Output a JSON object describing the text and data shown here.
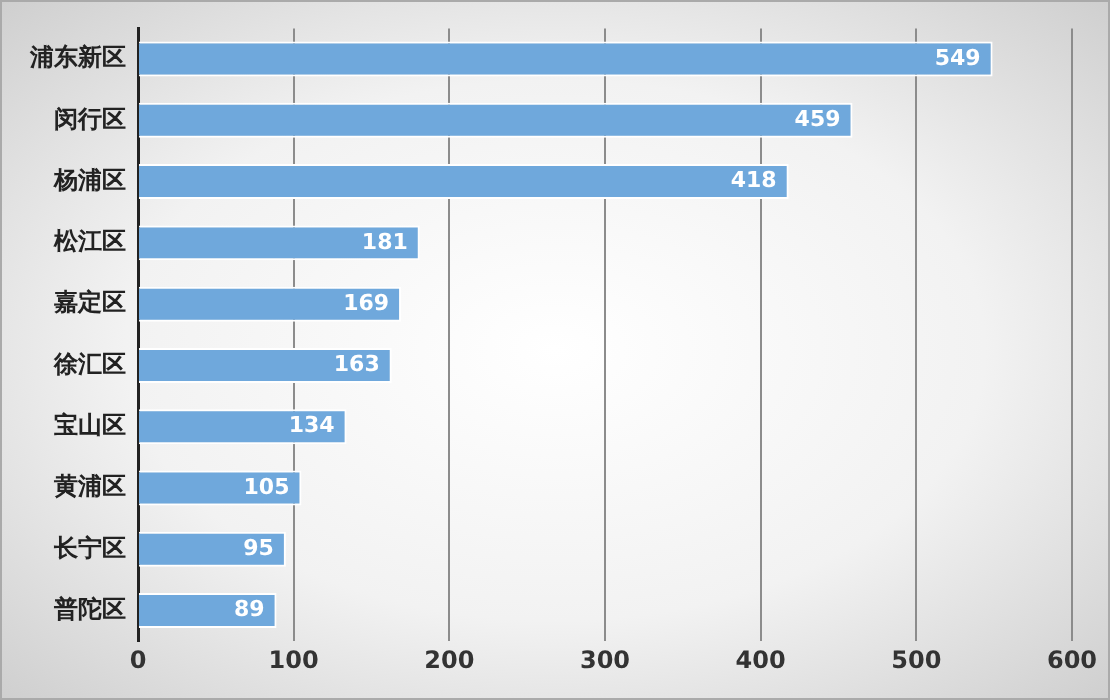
{
  "chart_data": {
    "type": "bar",
    "orientation": "horizontal",
    "categories": [
      "浦东新区",
      "闵行区",
      "杨浦区",
      "松江区",
      "嘉定区",
      "徐汇区",
      "宝山区",
      "黄浦区",
      "长宁区",
      "普陀区"
    ],
    "values": [
      549,
      459,
      418,
      181,
      169,
      163,
      134,
      105,
      95,
      89
    ],
    "color": "#6fa8dc",
    "xlim": [
      0,
      600
    ],
    "xticks": [
      0,
      100,
      200,
      300,
      400,
      500,
      600
    ],
    "grid": "x",
    "data_labels": true
  }
}
